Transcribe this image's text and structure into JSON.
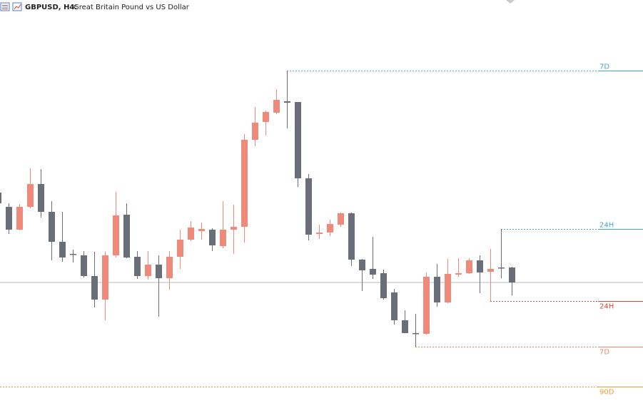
{
  "chart_data": {
    "type": "candlestick",
    "symbol": "GBPUSD, H4:",
    "title": "Great Britain Pound vs US Dollar",
    "up_color": "#ef8a7a",
    "down_color": "#6a6e78",
    "ylim": [
      0,
      579
    ],
    "open": [
      309,
      289,
      257,
      289,
      321,
      282,
      240,
      223,
      221,
      192,
      159,
      221,
      278,
      219,
      192,
      208,
      189,
      219,
      243,
      255,
      257,
      234,
      257,
      261,
      383,
      408,
      421,
      437,
      436,
      329,
      251,
      253,
      264,
      280,
      215,
      202,
      196,
      169,
      130,
      112,
      111,
      191,
      155,
      194,
      196,
      214,
      198,
      204,
      204
    ],
    "close": [
      294,
      257,
      289,
      321,
      282,
      240,
      218,
      222,
      192,
      159,
      221,
      277,
      218,
      192,
      208,
      189,
      219,
      243,
      260,
      258,
      235,
      257,
      261,
      383,
      407,
      422,
      439,
      435,
      329,
      250,
      253,
      265,
      280,
      215,
      200,
      194,
      161,
      130,
      112,
      111,
      191,
      155,
      195,
      196,
      214,
      197,
      202,
      203,
      183
    ],
    "high": [
      311,
      294,
      293,
      343,
      342,
      297,
      282,
      229,
      227,
      226,
      226,
      310,
      294,
      227,
      227,
      221,
      227,
      257,
      269,
      267,
      259,
      297,
      292,
      391,
      429,
      424,
      454,
      480,
      436,
      335,
      264,
      271,
      281,
      281,
      216,
      247,
      201,
      174,
      144,
      139,
      197,
      209,
      216,
      217,
      217,
      221,
      230,
      258,
      205
    ],
    "low": [
      291,
      251,
      256,
      287,
      274,
      214,
      212,
      211,
      190,
      148,
      130,
      218,
      217,
      188,
      187,
      135,
      173,
      202,
      241,
      243,
      227,
      231,
      223,
      239,
      374,
      389,
      419,
      399,
      317,
      242,
      244,
      248,
      261,
      206,
      171,
      188,
      159,
      124,
      112,
      93,
      110,
      149,
      154,
      191,
      195,
      168,
      157,
      189,
      165
    ],
    "levels": [
      {
        "label": "7D",
        "value": 480,
        "color": "#4aa8d8",
        "kind": "high"
      },
      {
        "label": "24H",
        "value": 258,
        "color": "#4aa8d8",
        "kind": "high"
      },
      {
        "label": "24H",
        "value": 157,
        "color": "#d9473a",
        "kind": "low"
      },
      {
        "label": "7D",
        "value": 93,
        "color": "#ef8a6a",
        "kind": "low"
      },
      {
        "label": "90D",
        "value": 37,
        "color": "#f0a030",
        "kind": "low"
      }
    ]
  }
}
